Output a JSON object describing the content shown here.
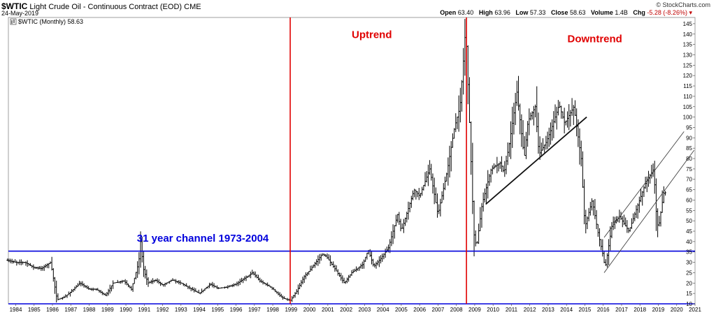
{
  "header": {
    "symbol": "$WTIC",
    "description": "Light Crude Oil - Continuous Contract (EOD)",
    "exchange": "CME",
    "date": "24-May-2019",
    "brand": "© StockCharts.com",
    "stats": {
      "open_label": "Open",
      "open": "63.40",
      "high_label": "High",
      "high": "63.96",
      "low_label": "Low",
      "low": "57.33",
      "close_label": "Close",
      "close": "58.63",
      "volume_label": "Volume",
      "volume": "1.4B",
      "chg_label": "Chg",
      "chg": "-5.28 (-8.26%)"
    }
  },
  "legend": {
    "label": "$WTIC (Monthly) 58.63"
  },
  "colors": {
    "price": "#000000",
    "horizontal_lines": "#0000dd",
    "vertical_lines": "#e00000",
    "annotation_red": "#e00000",
    "annotation_blue": "#0000dd"
  },
  "chart_data": {
    "type": "bar",
    "subtype": "ohlc-monthly",
    "x_axis": {
      "range": [
        1983.6,
        2021.0
      ],
      "ticks": [
        "1984",
        "1985",
        "1986",
        "1987",
        "1988",
        "1989",
        "1990",
        "1991",
        "1992",
        "1993",
        "1994",
        "1995",
        "1996",
        "1997",
        "1998",
        "1999",
        "2000",
        "2001",
        "2002",
        "2003",
        "2004",
        "2005",
        "2006",
        "2007",
        "2008",
        "2009",
        "2010",
        "2011",
        "2012",
        "2013",
        "2014",
        "2015",
        "2016",
        "2017",
        "2018",
        "2019",
        "2020",
        "2021"
      ]
    },
    "y_axis": {
      "side": "right",
      "range": [
        10,
        148
      ],
      "ticks": [
        10,
        15,
        20,
        25,
        30,
        35,
        40,
        45,
        50,
        55,
        60,
        65,
        70,
        75,
        80,
        85,
        90,
        95,
        100,
        105,
        110,
        115,
        120,
        125,
        130,
        135,
        140,
        145
      ]
    },
    "grid": false,
    "series": [
      {
        "values": [
          [
            1983.5,
            31
          ],
          [
            1984,
            30
          ],
          [
            1984.5,
            30
          ],
          [
            1985,
            27.5
          ],
          [
            1985.4,
            27
          ],
          [
            1985.9,
            30
          ],
          [
            1986,
            25
          ],
          [
            1986.25,
            12
          ],
          [
            1986.6,
            13
          ],
          [
            1986.9,
            15
          ],
          [
            1987.5,
            20
          ],
          [
            1988,
            17
          ],
          [
            1988.4,
            17
          ],
          [
            1988.9,
            14
          ],
          [
            1989.3,
            20
          ],
          [
            1989.9,
            21
          ],
          [
            1990.3,
            17
          ],
          [
            1990.7,
            30
          ],
          [
            1990.8,
            40
          ],
          [
            1990.95,
            27
          ],
          [
            1991.2,
            20
          ],
          [
            1991.6,
            21.5
          ],
          [
            1992,
            19
          ],
          [
            1992.5,
            21.5
          ],
          [
            1993,
            20
          ],
          [
            1993.8,
            16
          ],
          [
            1994,
            15
          ],
          [
            1994.6,
            19.5
          ],
          [
            1995,
            17.5
          ],
          [
            1995.5,
            18
          ],
          [
            1996,
            19.5
          ],
          [
            1996.9,
            25
          ],
          [
            1997.3,
            21
          ],
          [
            1997.9,
            18
          ],
          [
            1998.5,
            13
          ],
          [
            1998.95,
            11.5
          ],
          [
            1999.3,
            16
          ],
          [
            1999.7,
            23
          ],
          [
            2000,
            26
          ],
          [
            2000.7,
            34
          ],
          [
            2000.9,
            33
          ],
          [
            2001.3,
            28
          ],
          [
            2001.9,
            20
          ],
          [
            2002.3,
            25
          ],
          [
            2002.9,
            29
          ],
          [
            2003.2,
            36
          ],
          [
            2003.5,
            28
          ],
          [
            2003.9,
            32
          ],
          [
            2004.3,
            37
          ],
          [
            2004.8,
            53
          ],
          [
            2005,
            45
          ],
          [
            2005.7,
            65
          ],
          [
            2006,
            62
          ],
          [
            2006.55,
            75
          ],
          [
            2007,
            53
          ],
          [
            2007.5,
            74
          ],
          [
            2007.9,
            95
          ],
          [
            2008.2,
            105
          ],
          [
            2008.45,
            135
          ],
          [
            2008.5,
            145
          ],
          [
            2008.75,
            90
          ],
          [
            2008.95,
            44
          ],
          [
            2009.1,
            37
          ],
          [
            2009.4,
            58
          ],
          [
            2009.9,
            75
          ],
          [
            2010.4,
            78
          ],
          [
            2010.6,
            73
          ],
          [
            2010.9,
            88
          ],
          [
            2011.3,
            112
          ],
          [
            2011.7,
            80
          ],
          [
            2011.9,
            98
          ],
          [
            2012.3,
            105
          ],
          [
            2012.5,
            82
          ],
          [
            2012.9,
            88
          ],
          [
            2013.2,
            95
          ],
          [
            2013.6,
            106
          ],
          [
            2013.9,
            97
          ],
          [
            2014.4,
            105
          ],
          [
            2014.8,
            80
          ],
          [
            2015,
            47
          ],
          [
            2015.4,
            60
          ],
          [
            2015.7,
            45
          ],
          [
            2016,
            33
          ],
          [
            2016.1,
            27
          ],
          [
            2016.5,
            49
          ],
          [
            2016.9,
            52
          ],
          [
            2017.4,
            45
          ],
          [
            2017.9,
            58
          ],
          [
            2018.3,
            68
          ],
          [
            2018.75,
            75
          ],
          [
            2018.9,
            52
          ],
          [
            2019,
            46
          ],
          [
            2019.2,
            58
          ],
          [
            2019.35,
            66
          ],
          [
            2019.45,
            58.6
          ]
        ]
      }
    ],
    "horizontal_lines": [
      35.4,
      10.0
    ],
    "vertical_lines": [
      1998.95,
      2008.55
    ],
    "trend_lines": [
      {
        "from": [
          2009.6,
          58
        ],
        "to": [
          2015.1,
          100
        ]
      },
      {
        "from": [
          2016.05,
          25
        ],
        "to": [
          2020.95,
          84
        ]
      },
      {
        "from": [
          2016.05,
          42
        ],
        "to": [
          2020.4,
          93
        ]
      }
    ],
    "annotations": [
      {
        "text": "Uptrend",
        "at": [
          2002.3,
          138
        ]
      },
      {
        "text": "Downtrend",
        "at": [
          2014.05,
          136
        ]
      },
      {
        "text": "31 year channel 1973-2004",
        "at": [
          1990.6,
          40
        ]
      }
    ]
  }
}
